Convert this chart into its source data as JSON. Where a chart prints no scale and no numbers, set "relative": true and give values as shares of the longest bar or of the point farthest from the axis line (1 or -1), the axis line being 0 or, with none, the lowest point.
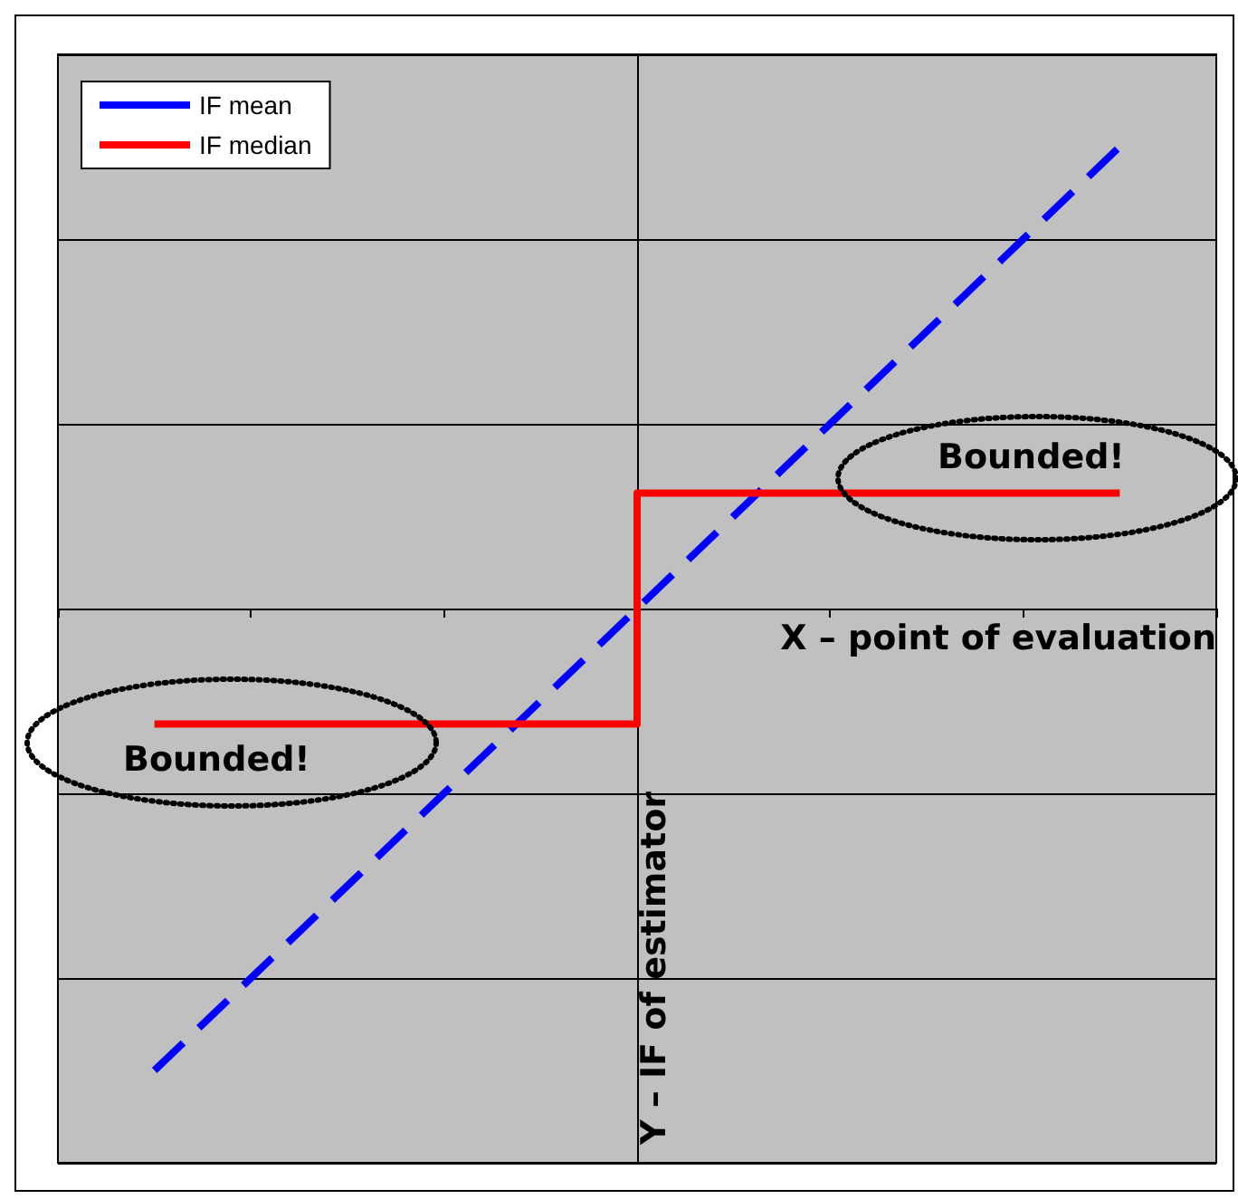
{
  "chart_data": {
    "type": "line",
    "relative": true,
    "xlabel": "X – point of evaluation",
    "ylabel": "Y – IF of estimator",
    "categories": [
      null,
      null,
      null,
      null,
      null,
      null,
      null,
      null,
      null,
      null,
      null
    ],
    "series": [
      {
        "name": "IF mean",
        "type": "line",
        "color": "#0000ff",
        "line_style": "dashed",
        "values": [
          -1,
          -0.8,
          -0.6,
          -0.4,
          -0.2,
          0,
          0.2,
          0.4,
          0.6,
          0.8,
          1
        ]
      },
      {
        "name": "IF median",
        "type": "step",
        "color": "#ff0000",
        "line_style": "solid",
        "values": [
          -0.25,
          -0.25,
          -0.25,
          -0.25,
          -0.25,
          0.25,
          0.25,
          0.25,
          0.25,
          0.25,
          0.25
        ]
      }
    ],
    "annotations": [
      "Bounded!",
      "Bounded!"
    ],
    "grid": "y",
    "legend": "top left",
    "marker": "none"
  }
}
